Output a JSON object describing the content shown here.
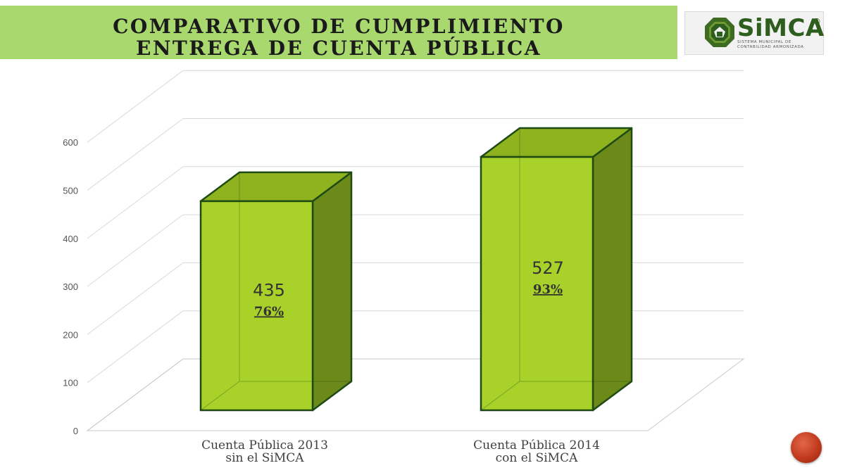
{
  "header": {
    "title_line_1": "COMPARATIVO DE CUMPLIMIENTO",
    "title_line_2": "ENTREGA DE CUENTA PÚBLICA"
  },
  "logo": {
    "wordmark": "SiMCA",
    "registered_mark": "®",
    "subtitle_line_1": "SISTEMA MUNICIPAL DE",
    "subtitle_line_2": "CONTABILIDAD ARMONIZADA"
  },
  "colors": {
    "banner": "#a9d86e",
    "bar_front": "#a8d12a",
    "bar_top": "#8fb31f",
    "bar_side": "#6b8a1a",
    "bar_outline": "#1f4a14",
    "nav_button": "#c23a1e"
  },
  "chart_data": {
    "type": "bar",
    "three_d": true,
    "title": "",
    "xlabel": "",
    "ylabel": "",
    "ylim": [
      0,
      600
    ],
    "yticks": [
      "0",
      "100",
      "200",
      "300",
      "400",
      "500",
      "600"
    ],
    "grid": true,
    "categories": [
      [
        "Cuenta Pública 2013",
        "sin el SiMCA"
      ],
      [
        "Cuenta Pública 2014",
        "con el SiMCA"
      ]
    ],
    "values": [
      435,
      527
    ],
    "value_labels": [
      "435",
      "527"
    ],
    "percent_labels": [
      "76%",
      "93%"
    ]
  },
  "nav": {
    "icon": "next-slide-button"
  }
}
